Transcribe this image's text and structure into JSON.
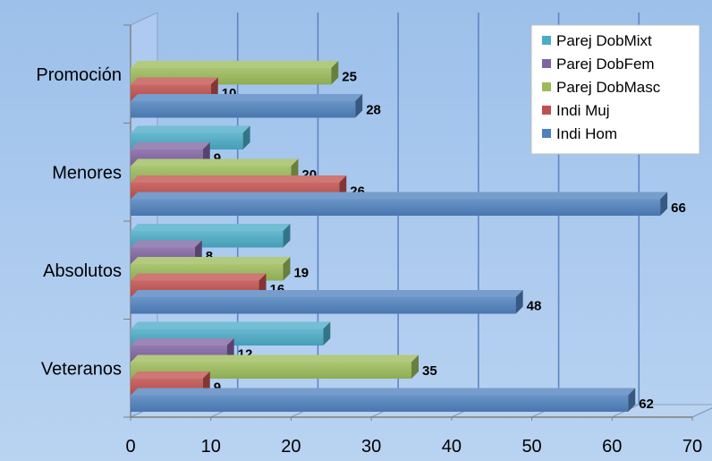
{
  "chart_data": {
    "type": "bar",
    "orientation": "horizontal",
    "style": "3d",
    "categories": [
      "Veteranos",
      "Absolutos",
      "Menores",
      "Promoción"
    ],
    "series": [
      {
        "name": "Indi Hom",
        "color": "#4f81bd",
        "values": [
          62,
          48,
          66,
          28
        ],
        "labels": [
          "62",
          "48",
          "66",
          "28"
        ]
      },
      {
        "name": "Indi Muj",
        "color": "#c0504d",
        "values": [
          9,
          16,
          26,
          10
        ],
        "labels": [
          "9",
          "16",
          "26",
          "10"
        ]
      },
      {
        "name": "Parej DobMasc",
        "color": "#9bbb59",
        "values": [
          35,
          19,
          20,
          25
        ],
        "labels": [
          "35",
          "19",
          "20",
          "25"
        ]
      },
      {
        "name": "Parej DobFem",
        "color": "#8064a2",
        "values": [
          12,
          8,
          9,
          0
        ],
        "labels": [
          "12",
          "8",
          "9",
          ""
        ]
      },
      {
        "name": "Parej DobMixt",
        "color": "#4bacc6",
        "values": [
          24,
          19,
          14,
          0
        ],
        "labels": [
          "",
          "",
          "",
          ""
        ]
      }
    ],
    "xlim": [
      0,
      70
    ],
    "x_ticks": [
      "0",
      "10",
      "20",
      "30",
      "40",
      "50",
      "60",
      "70"
    ],
    "grid": true,
    "legend_position": "top-right",
    "title": "",
    "xlabel": "",
    "ylabel": ""
  }
}
